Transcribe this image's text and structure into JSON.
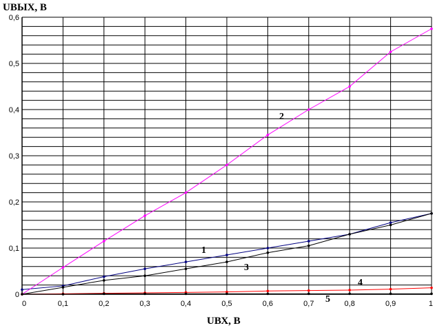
{
  "chart_data": {
    "type": "line",
    "xlabel": "UВХ, В",
    "ylabel": "UВЫХ, В",
    "xlim": [
      0,
      1
    ],
    "ylim": [
      0,
      0.6
    ],
    "x_ticks": [
      "0",
      "0,1",
      "0,2",
      "0,3",
      "0,4",
      "0,5",
      "0,6",
      "0,7",
      "0,8",
      "0,9",
      "1"
    ],
    "y_ticks": [
      "0",
      "0,1",
      "0,2",
      "0,3",
      "0,4",
      "0,5",
      "0,6"
    ],
    "grid": true,
    "series": [
      {
        "name": "1",
        "color": "#000080",
        "x": [
          0,
          0.1,
          0.2,
          0.3,
          0.4,
          0.5,
          0.6,
          0.7,
          0.8,
          0.9,
          1.0
        ],
        "y": [
          0.01,
          0.018,
          0.038,
          0.055,
          0.07,
          0.085,
          0.1,
          0.115,
          0.13,
          0.155,
          0.175
        ]
      },
      {
        "name": "2",
        "color": "#ff00ff",
        "x": [
          0,
          0.1,
          0.2,
          0.3,
          0.4,
          0.5,
          0.6,
          0.7,
          0.8,
          0.9,
          1.0
        ],
        "y": [
          0.0,
          0.058,
          0.115,
          0.17,
          0.22,
          0.28,
          0.345,
          0.4,
          0.45,
          0.525,
          0.575
        ]
      },
      {
        "name": "3",
        "color": "#000000",
        "x": [
          0,
          0.1,
          0.2,
          0.3,
          0.4,
          0.5,
          0.6,
          0.7,
          0.8,
          0.9,
          1.0
        ],
        "y": [
          0.0,
          0.015,
          0.03,
          0.04,
          0.055,
          0.07,
          0.09,
          0.105,
          0.13,
          0.15,
          0.175
        ]
      },
      {
        "name": "4",
        "color": "#ff0000",
        "x": [
          0,
          0.1,
          0.2,
          0.3,
          0.4,
          0.5,
          0.6,
          0.7,
          0.8,
          0.9,
          1.0
        ],
        "y": [
          0.0,
          0.001,
          0.002,
          0.003,
          0.004,
          0.005,
          0.007,
          0.008,
          0.009,
          0.011,
          0.014
        ]
      },
      {
        "name": "5",
        "color": "#000000",
        "x": [
          0,
          0.1,
          0.2,
          0.3,
          0.4,
          0.5,
          0.6,
          0.7,
          0.8,
          0.9,
          1.0
        ],
        "y": [
          0.0,
          0.0,
          0.001,
          0.001,
          0.001,
          0.001,
          0.001,
          0.001,
          0.001,
          0.001,
          0.001
        ]
      }
    ]
  }
}
